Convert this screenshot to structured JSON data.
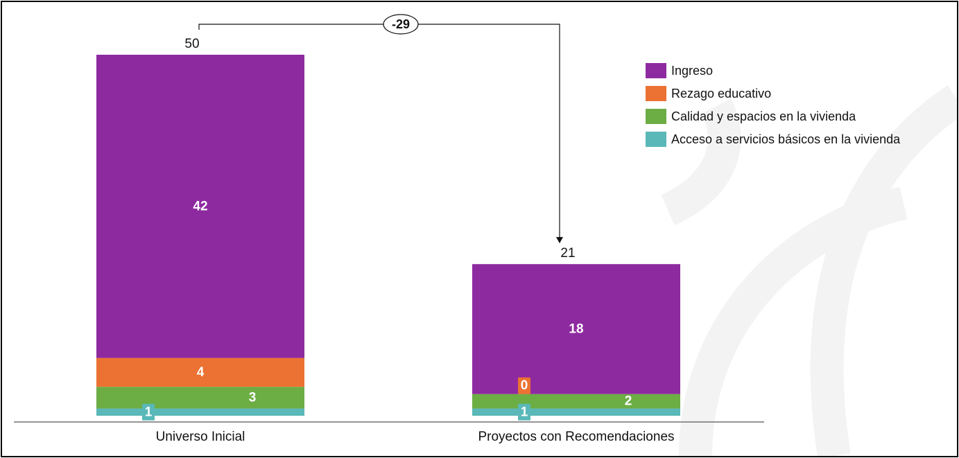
{
  "chart_data": {
    "type": "bar",
    "stacked": true,
    "categories": [
      "Universo Inicial",
      "Proyectos con Recomendaciones"
    ],
    "totals": [
      "50",
      "21"
    ],
    "difference": "-29",
    "series": [
      {
        "name": "Acceso a servicios básicos en la vivienda",
        "color": "#5ab8b8",
        "values": [
          1,
          1
        ],
        "labels": [
          "1",
          "1"
        ]
      },
      {
        "name": "Calidad y espacios en la vivienda",
        "color": "#6cad44",
        "values": [
          3,
          2
        ],
        "labels": [
          "3",
          "2"
        ]
      },
      {
        "name": "Rezago educativo",
        "color": "#eb7232",
        "values": [
          4,
          0
        ],
        "labels": [
          "4",
          "0"
        ]
      },
      {
        "name": "Ingreso",
        "color": "#8e2aa0",
        "values": [
          42,
          18
        ],
        "labels": [
          "42",
          "18"
        ]
      }
    ],
    "legend": {
      "position": "top-right",
      "items": [
        {
          "name": "Ingreso",
          "color": "#8e2aa0"
        },
        {
          "name": "Rezago educativo",
          "color": "#eb7232"
        },
        {
          "name": "Calidad y espacios en la vivienda",
          "color": "#6cad44"
        },
        {
          "name": "Acceso a servicios básicos en la vivienda",
          "color": "#5ab8b8"
        }
      ]
    },
    "ylim": [
      0,
      50
    ],
    "grid": false
  }
}
